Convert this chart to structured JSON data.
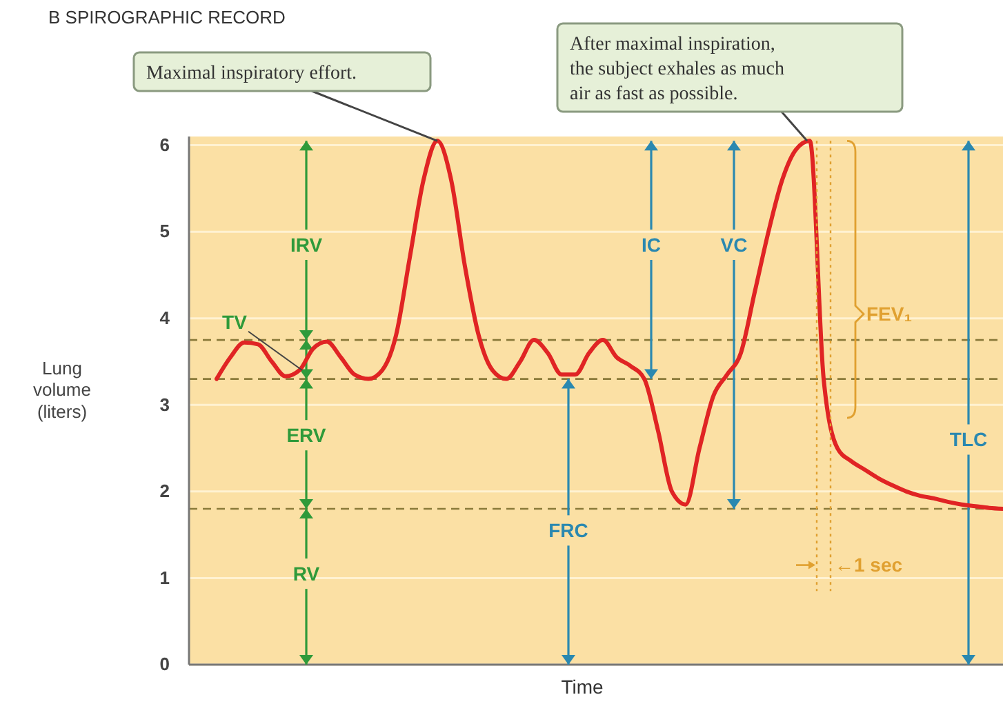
{
  "chart_data": {
    "type": "line",
    "title": "B   SPIROGRAPHIC RECORD",
    "xlabel": "Time",
    "ylabel": "Lung volume (liters)",
    "categories": [
      null,
      null,
      null,
      null,
      null,
      null,
      null,
      null,
      null,
      null,
      null,
      null,
      null,
      null,
      null,
      null,
      null,
      null,
      null,
      null,
      null,
      null,
      null,
      null,
      null,
      null,
      null,
      null,
      null,
      null,
      null,
      null,
      null,
      null,
      null,
      null,
      null,
      null,
      null,
      null,
      null,
      null,
      null,
      null,
      null,
      null,
      null,
      null,
      null,
      null,
      null,
      null,
      null,
      null,
      null,
      null,
      null,
      null
    ],
    "ylim": [
      0,
      6.1
    ],
    "yticks": [
      0,
      1,
      2,
      3,
      4,
      5,
      6
    ],
    "grid": "y",
    "marker": "none",
    "line_style": "solid",
    "series": [
      {
        "color": "#e02424",
        "values": [
          3.3,
          3.55,
          3.72,
          3.7,
          3.5,
          3.33,
          3.4,
          3.65,
          3.73,
          3.55,
          3.35,
          3.3,
          3.4,
          3.8,
          4.7,
          5.6,
          6.05,
          5.6,
          4.6,
          3.8,
          3.4,
          3.3,
          3.5,
          3.75,
          3.6,
          3.35,
          3.35,
          3.6,
          3.75,
          3.55,
          3.45,
          3.3,
          2.7,
          2.0,
          1.85,
          2.5,
          3.1,
          3.35,
          3.6,
          4.3,
          5.0,
          5.6,
          5.95,
          6.05,
          3.3,
          2.5,
          2.35,
          2.25,
          2.15,
          2.07,
          2.0,
          1.95,
          1.92,
          1.88,
          1.85,
          1.83,
          1.81,
          1.8
        ]
      }
    ],
    "ref_lines": [
      {
        "axis": "y",
        "value": 3.75,
        "color": "#8a7a3a",
        "line_style": "dashed"
      },
      {
        "axis": "y",
        "value": 3.3,
        "color": "#8a7a3a",
        "line_style": "dashed"
      },
      {
        "axis": "y",
        "value": 1.8,
        "color": "#8a7a3a",
        "line_style": "dashed"
      }
    ],
    "annotations": [
      "IRV",
      "TV",
      "ERV",
      "RV",
      "IC",
      "VC",
      "FRC",
      "TLC",
      "FEV₁",
      "←1 sec",
      "Maximal inspiratory effort.",
      "After maximal inspiration, the subject exhales as much air as fast as possible."
    ]
  }
}
